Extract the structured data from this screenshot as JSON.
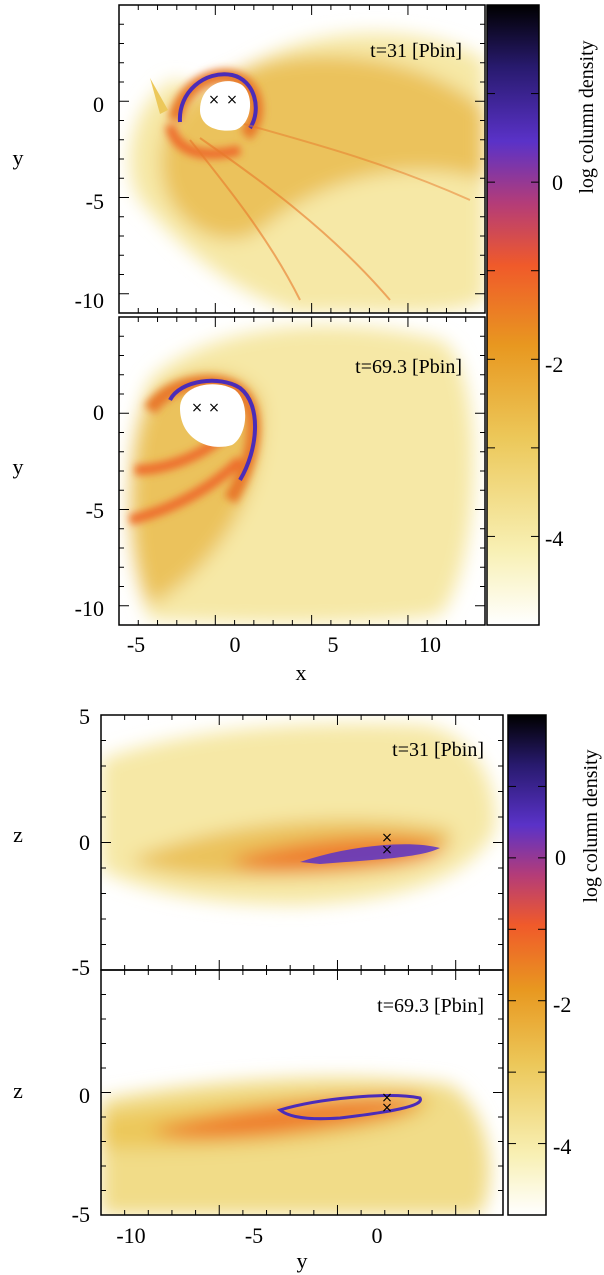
{
  "colors": {
    "colormap": [
      "#ffffff",
      "#f8f0b4",
      "#ecc85a",
      "#e89820",
      "#f05a2a",
      "#b43c78",
      "#5a32c8",
      "#281a6e",
      "#000000"
    ],
    "frame": "#000000",
    "marker": "#000000"
  },
  "chart_data": [
    {
      "type": "heatmap",
      "title": "",
      "panel_label": "t=31 [Pbin]",
      "xlabel": "",
      "ylabel": "y",
      "xlim": [
        -6,
        12.5
      ],
      "ylim": [
        -11,
        4.5
      ],
      "xticks": [],
      "yticks": [
        "0",
        "-5",
        "-10"
      ],
      "colorbar": {
        "label": "log column density",
        "ticks": [
          "0",
          "-2",
          "-4"
        ],
        "range": [
          -5.2,
          1.4
        ]
      },
      "sinks": [
        [
          -1.1,
          0.3
        ],
        [
          -0.2,
          0.3
        ]
      ]
    },
    {
      "type": "heatmap",
      "title": "",
      "panel_label": "t=69.3 [Pbin]",
      "xlabel": "x",
      "ylabel": "y",
      "xlim": [
        -6,
        12.5
      ],
      "ylim": [
        -11,
        4.5
      ],
      "xticks": [
        "-5",
        "0",
        "5",
        "10"
      ],
      "yticks": [
        "0",
        "-5",
        "-10"
      ],
      "sinks": [
        [
          -2.0,
          0.3
        ],
        [
          -1.1,
          0.3
        ]
      ]
    },
    {
      "type": "heatmap",
      "title": "",
      "panel_label": "t=31 [Pbin]",
      "xlabel": "",
      "ylabel": "z",
      "xlim": [
        -11,
        5.8
      ],
      "ylim": [
        -5,
        5
      ],
      "xticks": [],
      "yticks": [
        "5",
        "0",
        "-5"
      ],
      "colorbar": {
        "label": "log column density",
        "ticks": [
          "0",
          "-2",
          "-4"
        ],
        "range": [
          -5.2,
          1.4
        ]
      },
      "sinks": [
        [
          0.3,
          0.2
        ],
        [
          0.3,
          -0.3
        ]
      ]
    },
    {
      "type": "heatmap",
      "title": "",
      "panel_label": "t=69.3 [Pbin]",
      "xlabel": "y",
      "ylabel": "z",
      "xlim": [
        -11,
        5.8
      ],
      "ylim": [
        -5,
        5
      ],
      "xticks": [
        "-10",
        "-5",
        "0"
      ],
      "yticks": [
        "0",
        "-5"
      ],
      "sinks": [
        [
          0.3,
          0.0
        ],
        [
          0.3,
          -0.5
        ]
      ]
    }
  ]
}
